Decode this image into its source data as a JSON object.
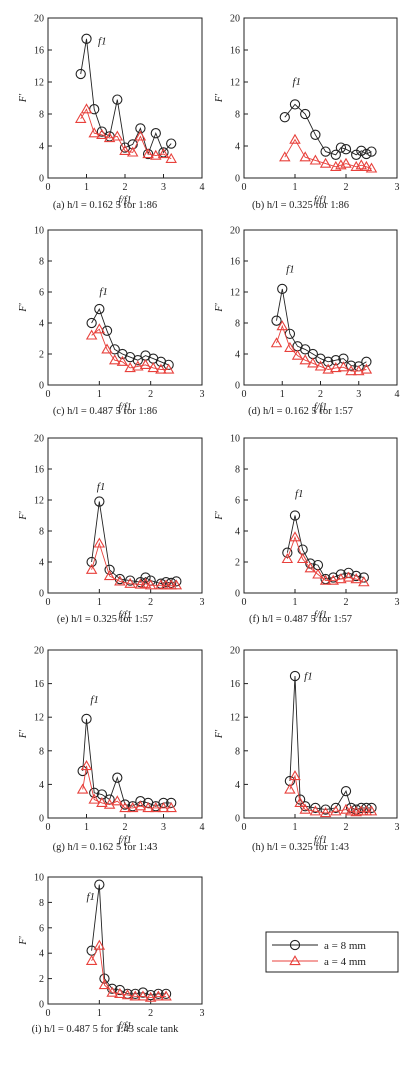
{
  "legend": {
    "entries": [
      {
        "label": "a = 8 mm",
        "color": "#222222",
        "marker": "circle"
      },
      {
        "label": "a = 4 mm",
        "color": "#e8413c",
        "marker": "triangle"
      }
    ]
  },
  "chart_data": [
    {
      "type": "line",
      "caption": "(a) h/l = 0.162 5 for 1:86",
      "xlabel": "f/f1",
      "ylabel": "F'",
      "xlim": [
        0,
        4
      ],
      "xticks": [
        0,
        1,
        2,
        3,
        4
      ],
      "ylim": [
        0,
        20
      ],
      "yticks": [
        0,
        4,
        8,
        12,
        16,
        20
      ],
      "annotation": {
        "text": "f1",
        "x": 1.3,
        "y": 16.7
      },
      "series": [
        {
          "name": "a = 8 mm",
          "x": [
            0.85,
            1.0,
            1.2,
            1.4,
            1.6,
            1.8,
            2.0,
            2.2,
            2.4,
            2.6,
            2.8,
            3.0,
            3.2
          ],
          "y": [
            13.0,
            17.4,
            8.6,
            5.8,
            5.2,
            9.8,
            3.8,
            4.2,
            6.2,
            3.0,
            5.6,
            3.2,
            4.3
          ]
        },
        {
          "name": "a = 4 mm",
          "x": [
            0.85,
            1.0,
            1.2,
            1.4,
            1.6,
            1.8,
            2.0,
            2.2,
            2.4,
            2.6,
            2.8,
            3.0,
            3.2
          ],
          "y": [
            7.4,
            8.6,
            5.6,
            5.4,
            5.0,
            5.2,
            3.4,
            3.2,
            5.2,
            3.0,
            2.8,
            3.0,
            2.4
          ]
        }
      ]
    },
    {
      "type": "line",
      "caption": "(b) h/l = 0.325 for 1:86",
      "xlabel": "f/f1",
      "ylabel": "F'",
      "xlim": [
        0,
        3
      ],
      "xticks": [
        0,
        1,
        2,
        3
      ],
      "ylim": [
        0,
        20
      ],
      "yticks": [
        0,
        4,
        8,
        12,
        16,
        20
      ],
      "annotation": {
        "text": "f1",
        "x": 0.95,
        "y": 11.6
      },
      "series": [
        {
          "name": "a = 8 mm",
          "x": [
            0.8,
            1.0,
            1.2,
            1.4,
            1.6,
            1.8,
            1.9,
            2.0,
            2.2,
            2.3,
            2.4,
            2.5
          ],
          "y": [
            7.6,
            9.2,
            8.0,
            5.4,
            3.3,
            2.9,
            3.8,
            3.6,
            2.9,
            3.4,
            3.0,
            3.3
          ]
        },
        {
          "name": "a = 4 mm",
          "x": [
            0.8,
            1.0,
            1.2,
            1.4,
            1.6,
            1.8,
            1.9,
            2.0,
            2.2,
            2.3,
            2.4,
            2.5
          ],
          "y": [
            2.6,
            4.8,
            2.6,
            2.2,
            1.8,
            1.4,
            1.6,
            1.8,
            1.4,
            1.6,
            1.4,
            1.2
          ]
        }
      ]
    },
    {
      "type": "line",
      "caption": "(c) h/l = 0.487 5 for 1:86",
      "xlabel": "f/f1",
      "ylabel": "F'",
      "xlim": [
        0,
        3
      ],
      "xticks": [
        0,
        1,
        2,
        3
      ],
      "ylim": [
        0,
        10
      ],
      "yticks": [
        0,
        2,
        4,
        6,
        8,
        10
      ],
      "annotation": {
        "text": "f1",
        "x": 1.0,
        "y": 5.8
      },
      "series": [
        {
          "name": "a = 8 mm",
          "x": [
            0.85,
            1.0,
            1.15,
            1.3,
            1.45,
            1.6,
            1.75,
            1.9,
            2.05,
            2.2,
            2.35
          ],
          "y": [
            4.0,
            4.9,
            3.5,
            2.3,
            2.0,
            1.8,
            1.6,
            1.9,
            1.7,
            1.5,
            1.3
          ]
        },
        {
          "name": "a = 4 mm",
          "x": [
            0.85,
            1.0,
            1.15,
            1.3,
            1.45,
            1.6,
            1.75,
            1.9,
            2.05,
            2.2,
            2.35
          ],
          "y": [
            3.2,
            3.6,
            2.3,
            1.6,
            1.5,
            1.1,
            1.2,
            1.3,
            1.1,
            1.0,
            1.0
          ]
        }
      ]
    },
    {
      "type": "line",
      "caption": "(d) h/l = 0.162 5 for 1:57",
      "xlabel": "f/f1",
      "ylabel": "F'",
      "xlim": [
        0,
        4
      ],
      "xticks": [
        0,
        1,
        2,
        3,
        4
      ],
      "ylim": [
        0,
        20
      ],
      "yticks": [
        0,
        4,
        8,
        12,
        16,
        20
      ],
      "annotation": {
        "text": "f1",
        "x": 1.1,
        "y": 14.5
      },
      "series": [
        {
          "name": "a = 8 mm",
          "x": [
            0.85,
            1.0,
            1.2,
            1.4,
            1.6,
            1.8,
            2.0,
            2.2,
            2.4,
            2.6,
            2.8,
            3.0,
            3.2
          ],
          "y": [
            8.3,
            12.4,
            6.6,
            5.0,
            4.6,
            4.0,
            3.4,
            3.0,
            3.2,
            3.4,
            2.5,
            2.4,
            3.0
          ]
        },
        {
          "name": "a = 4 mm",
          "x": [
            0.85,
            1.0,
            1.2,
            1.4,
            1.6,
            1.8,
            2.0,
            2.2,
            2.4,
            2.6,
            2.8,
            3.0,
            3.2
          ],
          "y": [
            5.4,
            7.6,
            4.8,
            3.8,
            3.2,
            2.8,
            2.4,
            2.0,
            2.2,
            2.3,
            1.8,
            1.8,
            2.0
          ]
        }
      ]
    },
    {
      "type": "line",
      "caption": "(e) h/l = 0.325 for 1:57",
      "xlabel": "f/f1",
      "ylabel": "F'",
      "xlim": [
        0,
        3
      ],
      "xticks": [
        0,
        1,
        2,
        3
      ],
      "ylim": [
        0,
        20
      ],
      "yticks": [
        0,
        4,
        8,
        12,
        16,
        20
      ],
      "annotation": {
        "text": "f1",
        "x": 0.95,
        "y": 13.3
      },
      "series": [
        {
          "name": "a = 8 mm",
          "x": [
            0.85,
            1.0,
            1.2,
            1.4,
            1.6,
            1.8,
            1.9,
            2.0,
            2.2,
            2.3,
            2.4,
            2.5
          ],
          "y": [
            4.0,
            11.8,
            3.0,
            1.8,
            1.6,
            1.4,
            2.0,
            1.6,
            1.2,
            1.4,
            1.3,
            1.5
          ]
        },
        {
          "name": "a = 4 mm",
          "x": [
            0.85,
            1.0,
            1.2,
            1.4,
            1.6,
            1.8,
            1.9,
            2.0,
            2.2,
            2.3,
            2.4,
            2.5
          ],
          "y": [
            3.0,
            6.4,
            2.2,
            1.5,
            1.2,
            1.1,
            1.2,
            1.0,
            1.0,
            1.0,
            1.0,
            1.0
          ]
        }
      ]
    },
    {
      "type": "line",
      "caption": "(f) h/l = 0.487 5 for 1:57",
      "xlabel": "f/f1",
      "ylabel": "F'",
      "xlim": [
        0,
        3
      ],
      "xticks": [
        0,
        1,
        2,
        3
      ],
      "ylim": [
        0,
        10
      ],
      "yticks": [
        0,
        2,
        4,
        6,
        8,
        10
      ],
      "annotation": {
        "text": "f1",
        "x": 1.0,
        "y": 6.2
      },
      "series": [
        {
          "name": "a = 8 mm",
          "x": [
            0.85,
            1.0,
            1.15,
            1.3,
            1.45,
            1.6,
            1.75,
            1.9,
            2.05,
            2.2,
            2.35
          ],
          "y": [
            2.6,
            5.0,
            2.8,
            1.9,
            1.8,
            0.9,
            1.0,
            1.2,
            1.3,
            1.1,
            1.0
          ]
        },
        {
          "name": "a = 4 mm",
          "x": [
            0.85,
            1.0,
            1.15,
            1.3,
            1.45,
            1.6,
            1.75,
            1.9,
            2.05,
            2.2,
            2.35
          ],
          "y": [
            2.2,
            3.6,
            2.2,
            1.6,
            1.2,
            0.8,
            0.8,
            0.9,
            1.0,
            0.9,
            0.7
          ]
        }
      ]
    },
    {
      "type": "line",
      "caption": "(g) h/l = 0.162 5 for 1:43",
      "xlabel": "f/f1",
      "ylabel": "F'",
      "xlim": [
        0,
        4
      ],
      "xticks": [
        0,
        1,
        2,
        3,
        4
      ],
      "ylim": [
        0,
        20
      ],
      "yticks": [
        0,
        4,
        8,
        12,
        16,
        20
      ],
      "annotation": {
        "text": "f1",
        "x": 1.1,
        "y": 13.7
      },
      "series": [
        {
          "name": "a = 8 mm",
          "x": [
            0.9,
            1.0,
            1.2,
            1.4,
            1.6,
            1.8,
            2.0,
            2.2,
            2.4,
            2.6,
            2.8,
            3.0,
            3.2
          ],
          "y": [
            5.6,
            11.8,
            3.0,
            2.8,
            2.2,
            4.8,
            1.6,
            1.4,
            2.0,
            1.8,
            1.4,
            1.8,
            1.8
          ]
        },
        {
          "name": "a = 4 mm",
          "x": [
            0.9,
            1.0,
            1.2,
            1.4,
            1.6,
            1.8,
            2.0,
            2.2,
            2.4,
            2.6,
            2.8,
            3.0,
            3.2
          ],
          "y": [
            3.4,
            6.2,
            2.2,
            1.8,
            1.6,
            2.0,
            1.2,
            1.2,
            1.4,
            1.2,
            1.2,
            1.2,
            1.2
          ]
        }
      ]
    },
    {
      "type": "line",
      "caption": "(h) h/l = 0.325 for 1:43",
      "xlabel": "f/f1",
      "ylabel": "F'",
      "xlim": [
        0,
        3
      ],
      "xticks": [
        0,
        1,
        2,
        3
      ],
      "ylim": [
        0,
        20
      ],
      "yticks": [
        0,
        4,
        8,
        12,
        16,
        20
      ],
      "annotation": {
        "text": "f1",
        "x": 1.18,
        "y": 16.5
      },
      "series": [
        {
          "name": "a = 8 mm",
          "x": [
            0.9,
            1.0,
            1.1,
            1.2,
            1.4,
            1.6,
            1.8,
            2.0,
            2.1,
            2.2,
            2.3,
            2.4,
            2.5
          ],
          "y": [
            4.4,
            16.9,
            2.2,
            1.4,
            1.2,
            1.0,
            1.2,
            3.2,
            1.2,
            1.0,
            1.2,
            1.2,
            1.2
          ]
        },
        {
          "name": "a = 4 mm",
          "x": [
            0.9,
            1.0,
            1.1,
            1.2,
            1.4,
            1.6,
            1.8,
            2.0,
            2.1,
            2.2,
            2.3,
            2.4,
            2.5
          ],
          "y": [
            3.4,
            5.0,
            1.8,
            1.0,
            0.8,
            0.6,
            0.8,
            1.0,
            0.8,
            0.7,
            0.8,
            0.8,
            0.8
          ]
        }
      ]
    },
    {
      "type": "line",
      "caption": "(i) h/l = 0.487 5 for 1:43 scale tank",
      "xlabel": "f/f1",
      "ylabel": "F'",
      "xlim": [
        0,
        3
      ],
      "xticks": [
        0,
        1,
        2,
        3
      ],
      "ylim": [
        0,
        10
      ],
      "yticks": [
        0,
        2,
        4,
        6,
        8,
        10
      ],
      "annotation": {
        "text": "f1",
        "x": 0.75,
        "y": 8.2
      },
      "series": [
        {
          "name": "a = 8 mm",
          "x": [
            0.85,
            1.0,
            1.1,
            1.25,
            1.4,
            1.55,
            1.7,
            1.85,
            2.0,
            2.15,
            2.3
          ],
          "y": [
            4.2,
            9.4,
            2.0,
            1.2,
            1.1,
            0.8,
            0.8,
            0.9,
            0.7,
            0.8,
            0.8
          ]
        },
        {
          "name": "a = 4 mm",
          "x": [
            0.85,
            1.0,
            1.1,
            1.25,
            1.4,
            1.55,
            1.7,
            1.85,
            2.0,
            2.15,
            2.3
          ],
          "y": [
            3.4,
            4.6,
            1.5,
            0.9,
            0.8,
            0.7,
            0.6,
            0.6,
            0.5,
            0.6,
            0.6
          ]
        }
      ]
    }
  ]
}
